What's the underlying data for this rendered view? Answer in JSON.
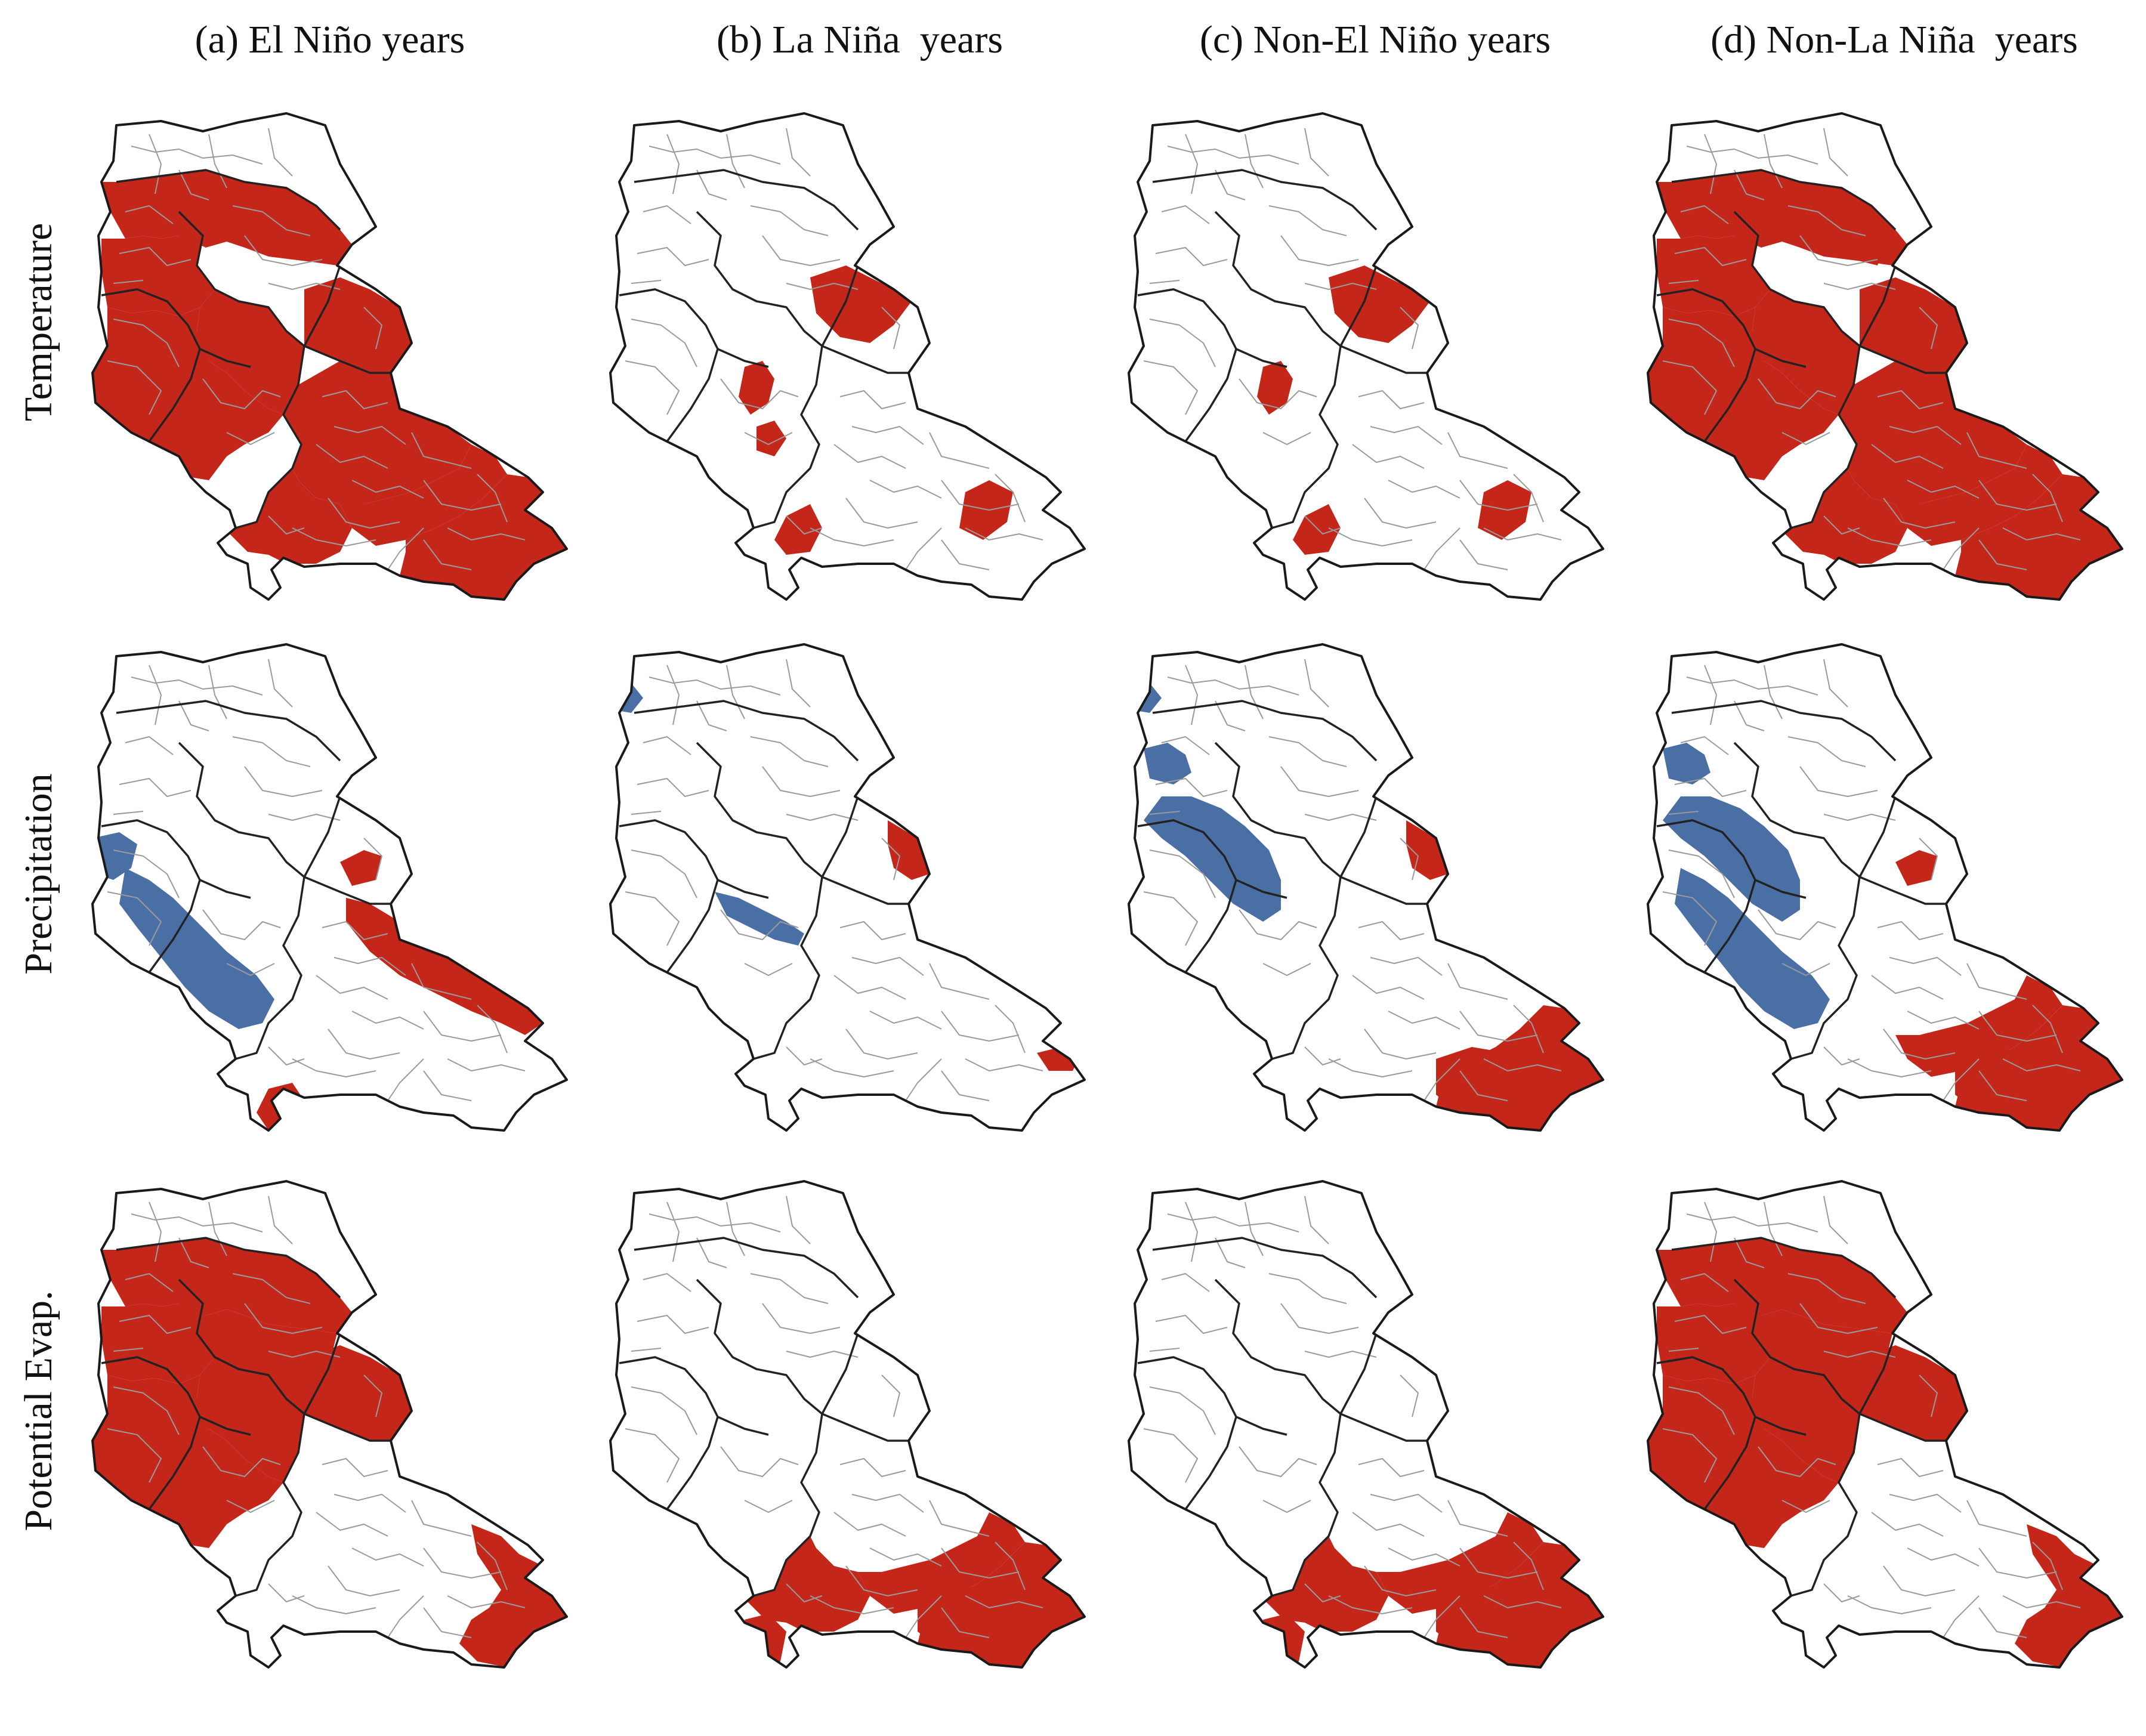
{
  "column_titles": [
    "(a) El Niño years",
    "(b) La Niña  years",
    "(c) Non-El Niño years",
    "(d) Non-La Niña  years"
  ],
  "row_titles": [
    "Temperature",
    "Precipitation",
    "Potential Evap."
  ],
  "colors": {
    "significant_increase": "#c4261a",
    "significant_decrease": "#4a6fa5",
    "not_significant": "#ffffff",
    "outer_border": "#1a1a1a",
    "region_border": "#222222",
    "district_border": "#9a9a9a"
  },
  "panels": [
    {
      "row": "Temperature",
      "column": "(a) El Niño years",
      "red_regions": [
        "R1",
        "R2",
        "R3",
        "R5",
        "R6",
        "R7",
        "R8",
        "R10",
        "R11",
        "R12"
      ],
      "blue_regions": []
    },
    {
      "row": "Temperature",
      "column": "(b) La Niña  years",
      "red_regions": [
        "R9",
        "R13",
        "R14",
        "R15",
        "R16"
      ],
      "blue_regions": []
    },
    {
      "row": "Temperature",
      "column": "(c) Non-El Niño years",
      "red_regions": [
        "R9",
        "R13",
        "R15",
        "R16"
      ],
      "blue_regions": []
    },
    {
      "row": "Temperature",
      "column": "(d) Non-La Niña  years",
      "red_regions": [
        "R1",
        "R2",
        "R3",
        "R5",
        "R6",
        "R7",
        "R8",
        "R10",
        "R11",
        "R12",
        "R17"
      ],
      "blue_regions": []
    },
    {
      "row": "Precipitation",
      "column": "(a) El Niño years",
      "red_regions": [
        "R18",
        "R19",
        "R20"
      ],
      "blue_regions": [
        "B1",
        "B2"
      ]
    },
    {
      "row": "Precipitation",
      "column": "(b) La Niña  years",
      "red_regions": [
        "R9b",
        "R21"
      ],
      "blue_regions": [
        "B3",
        "B4"
      ]
    },
    {
      "row": "Precipitation",
      "column": "(c) Non-El Niño years",
      "red_regions": [
        "R9b",
        "R12",
        "R22"
      ],
      "blue_regions": [
        "B3",
        "B5",
        "B6"
      ]
    },
    {
      "row": "Precipitation",
      "column": "(d) Non-La Niña  years",
      "red_regions": [
        "R18",
        "R11",
        "R12",
        "R22"
      ],
      "blue_regions": [
        "B5",
        "B6",
        "B2"
      ]
    },
    {
      "row": "Potential Evap.",
      "column": "(a) El Niño years",
      "red_regions": [
        "R1",
        "R2",
        "R3",
        "R4",
        "R5",
        "R6",
        "R7",
        "R23"
      ],
      "blue_regions": []
    },
    {
      "row": "Potential Evap.",
      "column": "(b) La Niña  years",
      "red_regions": [
        "R10",
        "R11",
        "R12",
        "R22",
        "R24"
      ],
      "blue_regions": []
    },
    {
      "row": "Potential Evap.",
      "column": "(c) Non-El Niño years",
      "red_regions": [
        "R10",
        "R11",
        "R12",
        "R22",
        "R24"
      ],
      "blue_regions": []
    },
    {
      "row": "Potential Evap.",
      "column": "(d) Non-La Niña  years",
      "red_regions": [
        "R1",
        "R2",
        "R3",
        "R4",
        "R5",
        "R6",
        "R7",
        "R23"
      ],
      "blue_regions": []
    }
  ]
}
